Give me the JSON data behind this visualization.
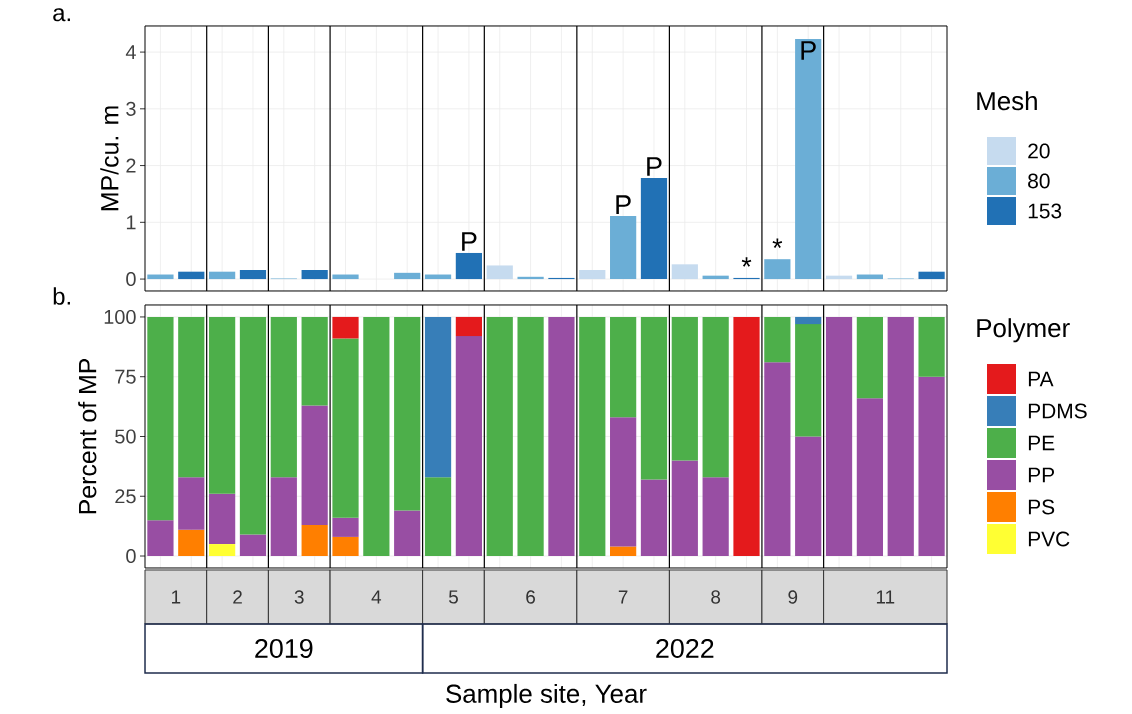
{
  "chart_data": [
    {
      "type": "bar",
      "ylabel": "MP/cu. m",
      "legend_title": "Mesh",
      "legend": "right",
      "grid": true,
      "tick_labels": "y",
      "ylim": [
        -0.21,
        4.46
      ],
      "yticks": [
        0,
        1,
        2,
        3,
        4
      ],
      "annotations": [
        "a."
      ],
      "categories": [
        null,
        null,
        null,
        null,
        null,
        null,
        null,
        null,
        null,
        null,
        null,
        null,
        null,
        null,
        null,
        null,
        null,
        null,
        null,
        null,
        null,
        null,
        null,
        null,
        null,
        null
      ],
      "series": [
        {
          "name": "20",
          "color": "#c6dbef",
          "values": [
            null,
            null,
            null,
            null,
            null,
            null,
            null,
            null,
            null,
            null,
            null,
            0.24,
            null,
            null,
            0.16,
            null,
            null,
            0.26,
            null,
            null,
            null,
            null,
            0.06,
            null,
            null,
            null
          ]
        },
        {
          "name": "80",
          "color": "#6baed6",
          "values": [
            0.08,
            null,
            0.13,
            null,
            0.01,
            null,
            0.08,
            null,
            0.11,
            0.08,
            null,
            null,
            0.04,
            null,
            null,
            1.11,
            null,
            null,
            0.06,
            null,
            0.35,
            4.23,
            null,
            0.08,
            0.01,
            null
          ],
          "value_labels": [
            null,
            null,
            null,
            null,
            null,
            null,
            null,
            null,
            null,
            null,
            null,
            null,
            null,
            null,
            null,
            "P",
            null,
            null,
            null,
            null,
            "*",
            "P",
            null,
            null,
            null,
            null
          ]
        },
        {
          "name": "153",
          "color": "#2171b5",
          "values": [
            null,
            0.13,
            null,
            0.16,
            null,
            0.16,
            null,
            null,
            null,
            null,
            0.46,
            null,
            null,
            0.02,
            null,
            null,
            1.78,
            null,
            null,
            0.02,
            null,
            null,
            null,
            null,
            null,
            0.13
          ],
          "value_labels": [
            null,
            null,
            null,
            null,
            null,
            null,
            null,
            null,
            null,
            null,
            "P",
            null,
            null,
            null,
            null,
            null,
            "P",
            null,
            null,
            "*",
            null,
            null,
            null,
            null,
            null,
            null
          ]
        }
      ]
    },
    {
      "type": "bar",
      "stacked": true,
      "ylabel": "Percent of MP",
      "xlabel": "Sample site, Year",
      "legend_title": "Polymer",
      "legend": "right",
      "grid": true,
      "ylim": [
        -5,
        105
      ],
      "yticks": [
        0,
        25,
        50,
        75,
        100
      ],
      "tick_labels": "y",
      "annotations": [
        "b.",
        "1",
        "2",
        "3",
        "4",
        "5",
        "6",
        "7",
        "8",
        "9",
        "11",
        "2019",
        "2022"
      ],
      "categories": [
        null,
        null,
        null,
        null,
        null,
        null,
        null,
        null,
        null,
        null,
        null,
        null,
        null,
        null,
        null,
        null,
        null,
        null,
        null,
        null,
        null,
        null,
        null,
        null,
        null,
        null
      ],
      "series": [
        {
          "name": "PVC",
          "color": "#ffff33",
          "values": [
            null,
            null,
            5,
            null,
            null,
            null,
            null,
            null,
            null,
            null,
            null,
            null,
            null,
            null,
            null,
            null,
            null,
            null,
            null,
            null,
            null,
            null,
            null,
            null,
            null,
            null
          ]
        },
        {
          "name": "PS",
          "color": "#ff7f00",
          "values": [
            null,
            11,
            null,
            null,
            null,
            13,
            8,
            null,
            null,
            null,
            null,
            null,
            null,
            null,
            null,
            4,
            null,
            null,
            null,
            null,
            null,
            null,
            null,
            null,
            null,
            null
          ]
        },
        {
          "name": "PP",
          "color": "#984ea3",
          "values": [
            15,
            22,
            21,
            9,
            33,
            50,
            8,
            null,
            19,
            null,
            92,
            null,
            null,
            100,
            null,
            54,
            32,
            40,
            33,
            null,
            81,
            50,
            100,
            66,
            100,
            75
          ]
        },
        {
          "name": "PE",
          "color": "#4daf4a",
          "values": [
            85,
            67,
            74,
            91,
            67,
            37,
            75,
            100,
            81,
            33,
            null,
            100,
            100,
            null,
            100,
            42,
            68,
            60,
            67,
            null,
            19,
            47,
            null,
            34,
            null,
            25
          ]
        },
        {
          "name": "PDMS",
          "color": "#377eb8",
          "values": [
            null,
            null,
            null,
            null,
            null,
            null,
            null,
            null,
            null,
            67,
            null,
            null,
            null,
            null,
            null,
            null,
            null,
            null,
            null,
            null,
            null,
            3,
            null,
            null,
            null,
            null
          ]
        },
        {
          "name": "PA",
          "color": "#e41a1c",
          "values": [
            null,
            null,
            null,
            null,
            null,
            null,
            9,
            null,
            null,
            null,
            8,
            null,
            null,
            null,
            null,
            null,
            null,
            null,
            null,
            100,
            null,
            null,
            null,
            null,
            null,
            null
          ]
        }
      ]
    }
  ]
}
